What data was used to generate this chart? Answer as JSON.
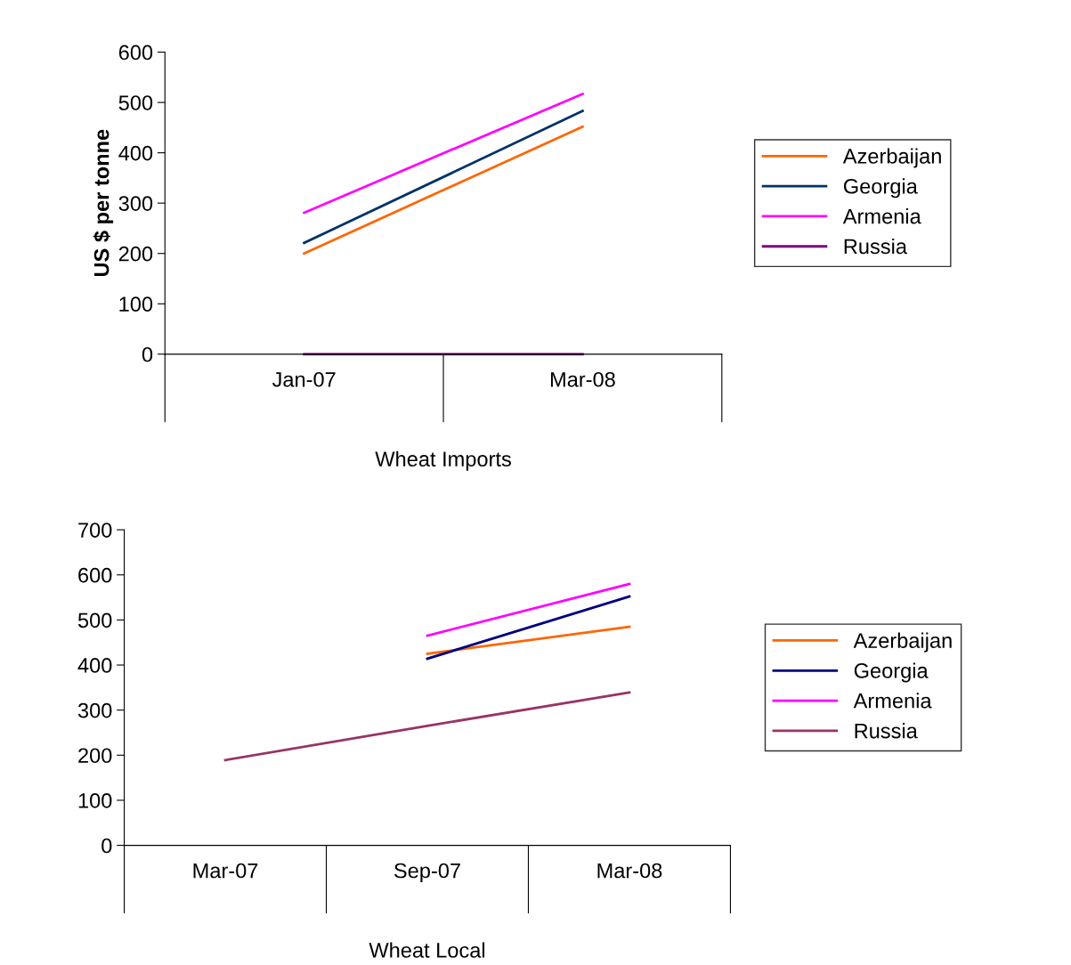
{
  "chart_data": [
    {
      "type": "line",
      "categories": [
        "Jan-07",
        "Mar-08"
      ],
      "xlabel": "Wheat Imports",
      "ylabel": "US $ per tonne",
      "ylim": [
        0,
        600
      ],
      "yticks": [
        0,
        100,
        200,
        300,
        400,
        500,
        600
      ],
      "grid": false,
      "legend": "right",
      "marker": "none",
      "series": [
        {
          "name": "Azerbaijan",
          "color": "#ff6600",
          "values": [
            200,
            452
          ]
        },
        {
          "name": "Georgia",
          "color": "#003366",
          "values": [
            221,
            483
          ]
        },
        {
          "name": "Armenia",
          "color": "#ff00ff",
          "values": [
            281,
            517
          ]
        },
        {
          "name": "Russia",
          "color": "#800080",
          "values": [
            0,
            0
          ]
        }
      ]
    },
    {
      "type": "line",
      "categories": [
        "Mar-07",
        "Sep-07",
        "Mar-08"
      ],
      "xlabel": "Wheat Local",
      "ylim": [
        0,
        700
      ],
      "yticks": [
        0,
        100,
        200,
        300,
        400,
        500,
        600,
        700
      ],
      "grid": false,
      "legend": "right",
      "marker": "none",
      "series": [
        {
          "name": "Azerbaijan",
          "color": "#ff6600",
          "values": [
            null,
            425,
            485
          ]
        },
        {
          "name": "Georgia",
          "color": "#000080",
          "values": [
            null,
            414,
            552
          ]
        },
        {
          "name": "Armenia",
          "color": "#ff00ff",
          "values": [
            null,
            465,
            580
          ]
        },
        {
          "name": "Russia",
          "color": "#993366",
          "values": [
            189,
            265,
            339
          ]
        }
      ]
    }
  ]
}
